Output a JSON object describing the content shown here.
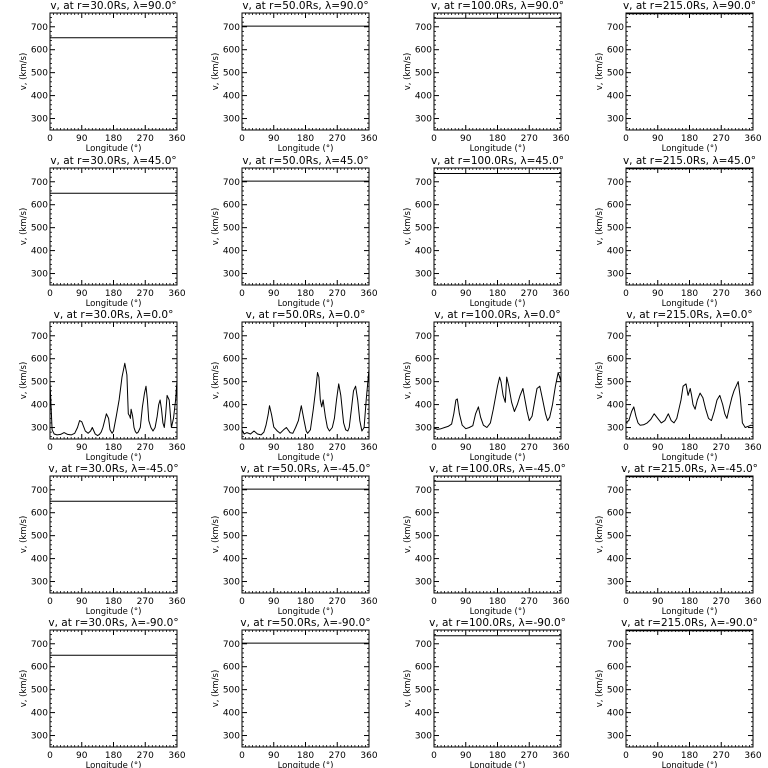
{
  "figure": {
    "background": "#ffffff",
    "line_color": "#000000"
  },
  "chart_data": [
    {
      "type": "line",
      "title": "v, at r=30.0Rs,  λ=90.0°",
      "xlabel": "Longitude  (°)",
      "ylabel": "v, (km/s)",
      "xlim": [
        0,
        360
      ],
      "ylim": [
        250,
        760
      ],
      "xticks": [
        "0",
        "90",
        "180",
        "270",
        "360"
      ],
      "yticks": [
        "300",
        "400",
        "500",
        "600",
        "700"
      ],
      "x": [
        0,
        360
      ],
      "series": [
        {
          "values": [
            652,
            652
          ]
        }
      ]
    },
    {
      "type": "line",
      "title": "v, at r=50.0Rs,  λ=90.0°",
      "xlabel": "Longitude  (°)",
      "ylabel": "v, (km/s)",
      "xlim": [
        0,
        360
      ],
      "ylim": [
        250,
        760
      ],
      "xticks": [
        "0",
        "90",
        "180",
        "270",
        "360"
      ],
      "yticks": [
        "300",
        "400",
        "500",
        "600",
        "700"
      ],
      "x": [
        0,
        360
      ],
      "series": [
        {
          "values": [
            703,
            703
          ]
        }
      ]
    },
    {
      "type": "line",
      "title": "v, at r=100.0Rs,  λ=90.0°",
      "xlabel": "Longitude  (°)",
      "ylabel": "v, (km/s)",
      "xlim": [
        0,
        360
      ],
      "ylim": [
        250,
        760
      ],
      "xticks": [
        "0",
        "90",
        "180",
        "270",
        "360"
      ],
      "yticks": [
        "300",
        "400",
        "500",
        "600",
        "700"
      ],
      "x": [
        0,
        360
      ],
      "series": [
        {
          "values": [
            737,
            737
          ]
        }
      ]
    },
    {
      "type": "line",
      "title": "v, at r=215.0Rs,  λ=90.0°",
      "xlabel": "Longitude  (°)",
      "ylabel": "v, (km/s)",
      "xlim": [
        0,
        360
      ],
      "ylim": [
        250,
        760
      ],
      "xticks": [
        "0",
        "90",
        "180",
        "270",
        "360"
      ],
      "yticks": [
        "300",
        "400",
        "500",
        "600",
        "700"
      ],
      "x": [
        0,
        360
      ],
      "series": [
        {
          "values": [
            757,
            757
          ]
        }
      ]
    },
    {
      "type": "line",
      "title": "v, at r=30.0Rs,  λ=45.0°",
      "xlabel": "Longitude  (°)",
      "ylabel": "v, (km/s)",
      "xlim": [
        0,
        360
      ],
      "ylim": [
        250,
        760
      ],
      "xticks": [
        "0",
        "90",
        "180",
        "270",
        "360"
      ],
      "yticks": [
        "300",
        "400",
        "500",
        "600",
        "700"
      ],
      "x": [
        0,
        360
      ],
      "series": [
        {
          "values": [
            650,
            650
          ]
        }
      ]
    },
    {
      "type": "line",
      "title": "v, at r=50.0Rs,  λ=45.0°",
      "xlabel": "Longitude  (°)",
      "ylabel": "v, (km/s)",
      "xlim": [
        0,
        360
      ],
      "ylim": [
        250,
        760
      ],
      "xticks": [
        "0",
        "90",
        "180",
        "270",
        "360"
      ],
      "yticks": [
        "300",
        "400",
        "500",
        "600",
        "700"
      ],
      "x": [
        0,
        360
      ],
      "series": [
        {
          "values": [
            703,
            703
          ]
        }
      ]
    },
    {
      "type": "line",
      "title": "v, at r=100.0Rs,  λ=45.0°",
      "xlabel": "Longitude  (°)",
      "ylabel": "v, (km/s)",
      "xlim": [
        0,
        360
      ],
      "ylim": [
        250,
        760
      ],
      "xticks": [
        "0",
        "90",
        "180",
        "270",
        "360"
      ],
      "yticks": [
        "300",
        "400",
        "500",
        "600",
        "700"
      ],
      "x": [
        0,
        360
      ],
      "series": [
        {
          "values": [
            736,
            736
          ]
        }
      ]
    },
    {
      "type": "line",
      "title": "v, at r=215.0Rs,  λ=45.0°",
      "xlabel": "Longitude  (°)",
      "ylabel": "v, (km/s)",
      "xlim": [
        0,
        360
      ],
      "ylim": [
        250,
        760
      ],
      "xticks": [
        "0",
        "90",
        "180",
        "270",
        "360"
      ],
      "yticks": [
        "300",
        "400",
        "500",
        "600",
        "700"
      ],
      "x": [
        0,
        360
      ],
      "series": [
        {
          "values": [
            757,
            757
          ]
        }
      ]
    },
    {
      "type": "line",
      "title": "v, at r=30.0Rs, λ=0.0°",
      "xlabel": "Longitude  (°)",
      "ylabel": "v, (km/s)",
      "xlim": [
        0,
        360
      ],
      "ylim": [
        250,
        760
      ],
      "xticks": [
        "0",
        "90",
        "180",
        "270",
        "360"
      ],
      "yticks": [
        "300",
        "400",
        "500",
        "600",
        "700"
      ],
      "x": [
        0,
        6,
        12,
        20,
        30,
        40,
        50,
        60,
        70,
        78,
        84,
        90,
        100,
        108,
        115,
        120,
        128,
        135,
        140,
        145,
        150,
        160,
        166,
        170,
        176,
        180,
        188,
        196,
        204,
        212,
        218,
        222,
        226,
        228,
        230,
        234,
        238,
        242,
        246,
        250,
        256,
        262,
        268,
        272,
        276,
        280,
        286,
        292,
        298,
        304,
        308,
        312,
        316,
        320,
        324,
        328,
        332,
        338,
        344,
        350,
        356,
        360
      ],
      "series": [
        {
          "values": [
            500,
            290,
            272,
            268,
            270,
            278,
            270,
            268,
            275,
            300,
            330,
            325,
            285,
            275,
            285,
            300,
            272,
            265,
            270,
            280,
            300,
            360,
            340,
            290,
            275,
            285,
            350,
            420,
            520,
            580,
            530,
            360,
            350,
            340,
            380,
            350,
            300,
            282,
            275,
            280,
            300,
            390,
            450,
            480,
            420,
            330,
            300,
            285,
            300,
            350,
            400,
            420,
            380,
            320,
            300,
            360,
            440,
            420,
            300,
            340,
            420,
            505
          ]
        }
      ]
    },
    {
      "type": "line",
      "title": "v, at r=50.0Rs, λ=0.0°",
      "xlabel": "Longitude  (°)",
      "ylabel": "v, (km/s)",
      "xlim": [
        0,
        360
      ],
      "ylim": [
        250,
        760
      ],
      "xticks": [
        "0",
        "90",
        "180",
        "270",
        "360"
      ],
      "yticks": [
        "300",
        "400",
        "500",
        "600",
        "700"
      ],
      "x": [
        0,
        6,
        14,
        24,
        34,
        44,
        54,
        62,
        68,
        74,
        78,
        84,
        90,
        100,
        108,
        118,
        126,
        136,
        144,
        152,
        160,
        168,
        176,
        182,
        186,
        194,
        202,
        210,
        214,
        218,
        222,
        226,
        230,
        236,
        242,
        248,
        256,
        262,
        268,
        274,
        280,
        288,
        294,
        300,
        304,
        310,
        316,
        322,
        328,
        334,
        340,
        346,
        352,
        360
      ],
      "series": [
        {
          "values": [
            290,
            272,
            278,
            272,
            285,
            272,
            268,
            280,
            310,
            355,
            395,
            355,
            302,
            285,
            275,
            290,
            300,
            278,
            275,
            300,
            330,
            395,
            330,
            285,
            275,
            290,
            380,
            480,
            540,
            520,
            420,
            390,
            420,
            350,
            300,
            285,
            300,
            340,
            420,
            490,
            440,
            320,
            290,
            285,
            300,
            380,
            460,
            480,
            420,
            330,
            285,
            300,
            420,
            555
          ]
        }
      ]
    },
    {
      "type": "line",
      "title": "v, at r=100.0Rs, λ=0.0°",
      "xlabel": "Longitude  (°)",
      "ylabel": "v, (km/s)",
      "xlim": [
        0,
        360
      ],
      "ylim": [
        250,
        760
      ],
      "xticks": [
        "0",
        "90",
        "180",
        "270",
        "360"
      ],
      "yticks": [
        "300",
        "400",
        "500",
        "600",
        "700"
      ],
      "x": [
        0,
        10,
        20,
        30,
        40,
        50,
        56,
        62,
        66,
        72,
        80,
        90,
        100,
        110,
        118,
        126,
        132,
        140,
        150,
        160,
        168,
        174,
        180,
        186,
        190,
        196,
        202,
        206,
        212,
        220,
        228,
        236,
        244,
        252,
        258,
        264,
        270,
        278,
        286,
        292,
        300,
        308,
        316,
        322,
        328,
        336,
        344,
        352,
        360
      ],
      "series": [
        {
          "values": [
            298,
            292,
            295,
            300,
            305,
            315,
            360,
            420,
            425,
            360,
            310,
            295,
            300,
            308,
            360,
            390,
            345,
            310,
            300,
            320,
            380,
            430,
            480,
            520,
            500,
            440,
            410,
            520,
            480,
            410,
            370,
            400,
            440,
            470,
            420,
            370,
            330,
            350,
            420,
            470,
            480,
            420,
            360,
            330,
            345,
            400,
            480,
            540,
            500
          ]
        }
      ]
    },
    {
      "type": "line",
      "title": "v, at r=215.0Rs, λ=0.0°",
      "xlabel": "Longitude  (°)",
      "ylabel": "v, (km/s)",
      "xlim": [
        0,
        360
      ],
      "ylim": [
        250,
        760
      ],
      "xticks": [
        "0",
        "90",
        "180",
        "270",
        "360"
      ],
      "yticks": [
        "300",
        "400",
        "500",
        "600",
        "700"
      ],
      "x": [
        0,
        8,
        16,
        22,
        28,
        34,
        40,
        50,
        60,
        70,
        80,
        90,
        100,
        110,
        120,
        128,
        136,
        144,
        150,
        156,
        162,
        170,
        176,
        182,
        186,
        190,
        196,
        202,
        210,
        218,
        226,
        234,
        242,
        250,
        258,
        266,
        274,
        280,
        286,
        292,
        300,
        306,
        312,
        318,
        324,
        330,
        338,
        346,
        354,
        360
      ],
      "series": [
        {
          "values": [
            322,
            330,
            370,
            390,
            350,
            320,
            310,
            312,
            320,
            335,
            360,
            340,
            320,
            330,
            360,
            330,
            320,
            340,
            380,
            420,
            480,
            490,
            440,
            470,
            440,
            400,
            380,
            420,
            450,
            430,
            380,
            340,
            330,
            370,
            420,
            440,
            400,
            360,
            340,
            380,
            430,
            460,
            480,
            500,
            430,
            320,
            300,
            305,
            310,
            308
          ]
        }
      ]
    },
    {
      "type": "line",
      "title": "v, at r=30.0Rs,  λ=-45.0°",
      "xlabel": "Longitude  (°)",
      "ylabel": "v, (km/s)",
      "xlim": [
        0,
        360
      ],
      "ylim": [
        250,
        760
      ],
      "xticks": [
        "0",
        "90",
        "180",
        "270",
        "360"
      ],
      "yticks": [
        "300",
        "400",
        "500",
        "600",
        "700"
      ],
      "x": [
        0,
        360
      ],
      "series": [
        {
          "values": [
            650,
            650
          ]
        }
      ]
    },
    {
      "type": "line",
      "title": "v, at r=50.0Rs,  λ=-45.0°",
      "xlabel": "Longitude  (°)",
      "ylabel": "v, (km/s)",
      "xlim": [
        0,
        360
      ],
      "ylim": [
        250,
        760
      ],
      "xticks": [
        "0",
        "90",
        "180",
        "270",
        "360"
      ],
      "yticks": [
        "300",
        "400",
        "500",
        "600",
        "700"
      ],
      "x": [
        0,
        360
      ],
      "series": [
        {
          "values": [
            703,
            703
          ]
        }
      ]
    },
    {
      "type": "line",
      "title": "v, at r=100.0Rs,  λ=-45.0°",
      "xlabel": "Longitude  (°)",
      "ylabel": "v, (km/s)",
      "xlim": [
        0,
        360
      ],
      "ylim": [
        250,
        760
      ],
      "xticks": [
        "0",
        "90",
        "180",
        "270",
        "360"
      ],
      "yticks": [
        "300",
        "400",
        "500",
        "600",
        "700"
      ],
      "x": [
        0,
        360
      ],
      "series": [
        {
          "values": [
            737,
            737
          ]
        }
      ]
    },
    {
      "type": "line",
      "title": "v, at r=215.0Rs,  λ=-45.0°",
      "xlabel": "Longitude  (°)",
      "ylabel": "v, (km/s)",
      "xlim": [
        0,
        360
      ],
      "ylim": [
        250,
        760
      ],
      "xticks": [
        "0",
        "90",
        "180",
        "270",
        "360"
      ],
      "yticks": [
        "300",
        "400",
        "500",
        "600",
        "700"
      ],
      "x": [
        0,
        360
      ],
      "series": [
        {
          "values": [
            757,
            757
          ]
        }
      ]
    },
    {
      "type": "line",
      "title": "v, at r=30.0Rs,  λ=-90.0°",
      "xlabel": "Longitude  (°)",
      "ylabel": "v, (km/s)",
      "xlim": [
        0,
        360
      ],
      "ylim": [
        250,
        760
      ],
      "xticks": [
        "0",
        "90",
        "180",
        "270",
        "360"
      ],
      "yticks": [
        "300",
        "400",
        "500",
        "600",
        "700"
      ],
      "x": [
        0,
        360
      ],
      "series": [
        {
          "values": [
            650,
            650
          ]
        }
      ]
    },
    {
      "type": "line",
      "title": "v, at r=50.0Rs,  λ=-90.0°",
      "xlabel": "Longitude  (°)",
      "ylabel": "v, (km/s)",
      "xlim": [
        0,
        360
      ],
      "ylim": [
        250,
        760
      ],
      "xticks": [
        "0",
        "90",
        "180",
        "270",
        "360"
      ],
      "yticks": [
        "300",
        "400",
        "500",
        "600",
        "700"
      ],
      "x": [
        0,
        360
      ],
      "series": [
        {
          "values": [
            703,
            703
          ]
        }
      ]
    },
    {
      "type": "line",
      "title": "v, at r=100.0Rs,  λ=-90.0°",
      "xlabel": "Longitude  (°)",
      "ylabel": "v, (km/s)",
      "xlim": [
        0,
        360
      ],
      "ylim": [
        250,
        760
      ],
      "xticks": [
        "0",
        "90",
        "180",
        "270",
        "360"
      ],
      "yticks": [
        "300",
        "400",
        "500",
        "600",
        "700"
      ],
      "x": [
        0,
        360
      ],
      "series": [
        {
          "values": [
            735,
            735
          ]
        }
      ]
    },
    {
      "type": "line",
      "title": "v, at r=215.0Rs,  λ=-90.0°",
      "xlabel": "Longitude  (°)",
      "ylabel": "v, (km/s)",
      "xlim": [
        0,
        360
      ],
      "ylim": [
        250,
        760
      ],
      "xticks": [
        "0",
        "90",
        "180",
        "270",
        "360"
      ],
      "yticks": [
        "300",
        "400",
        "500",
        "600",
        "700"
      ],
      "x": [
        0,
        360
      ],
      "series": [
        {
          "values": [
            757,
            757
          ]
        }
      ]
    }
  ]
}
